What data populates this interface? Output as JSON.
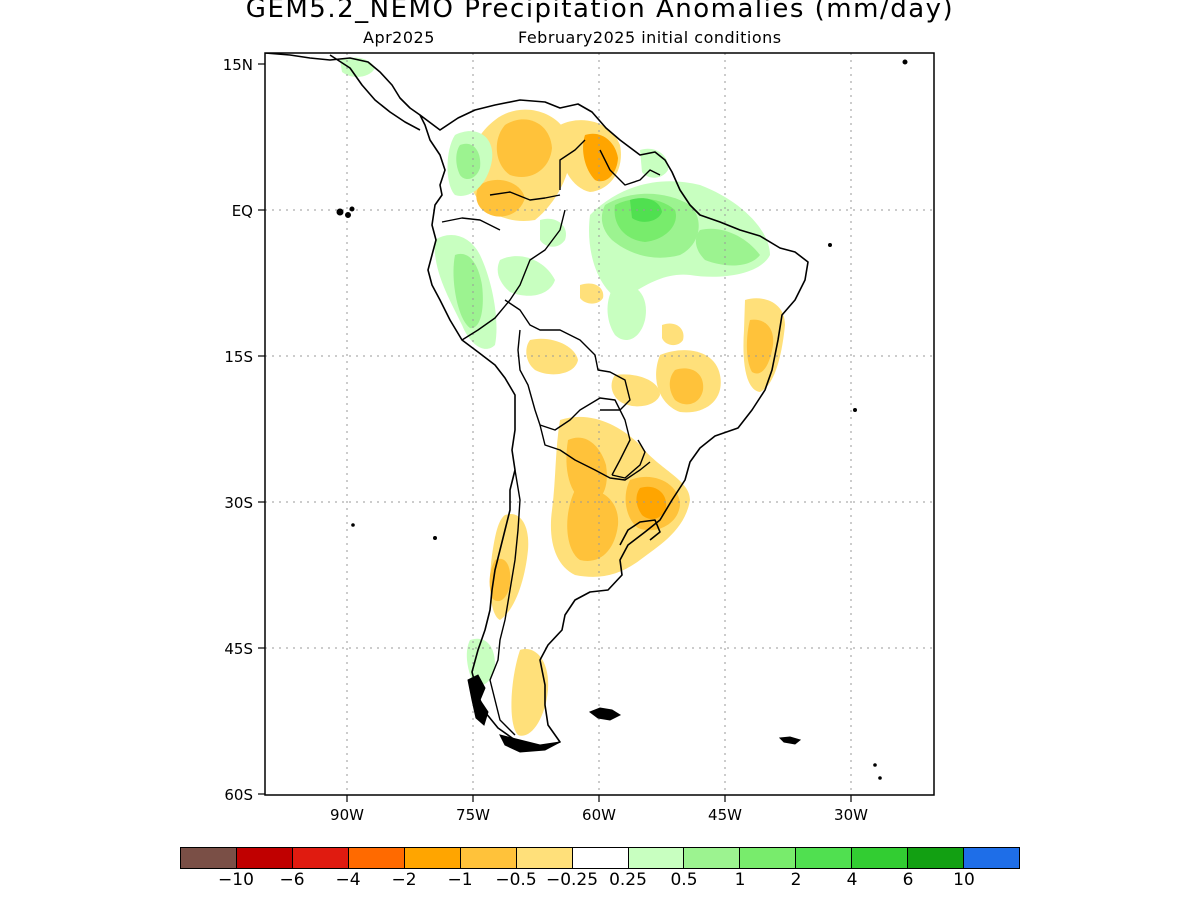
{
  "title": "GEM5.2_NEMO Precipitation Anomalies (mm/day)",
  "subtitle_month": "Apr2025",
  "subtitle_ic": "February2025 initial conditions",
  "lat_labels": [
    "15N",
    "EQ",
    "15S",
    "30S",
    "45S",
    "60S"
  ],
  "lon_labels": [
    "90W",
    "75W",
    "60W",
    "45W",
    "30W"
  ],
  "colorbar": {
    "colors": [
      "#7a4f46",
      "#c00000",
      "#e01b10",
      "#ff6a00",
      "#ffa500",
      "#ffc23a",
      "#ffe07a",
      "#ffffff",
      "#c8ffc0",
      "#9cf390",
      "#78ec6c",
      "#50e050",
      "#32cd32",
      "#12a012",
      "#1e6ee8"
    ],
    "tick_labels": [
      "−10",
      "−6",
      "−4",
      "−2",
      "−1",
      "−0.5",
      "−0.25",
      "0.25",
      "0.5",
      "1",
      "2",
      "4",
      "6",
      "10"
    ]
  },
  "map_data": {
    "region": "South America",
    "lat_range": [
      -60,
      15
    ],
    "lon_range": [
      -100,
      -20
    ],
    "variable": "Precipitation anomaly",
    "units": "mm/day"
  }
}
